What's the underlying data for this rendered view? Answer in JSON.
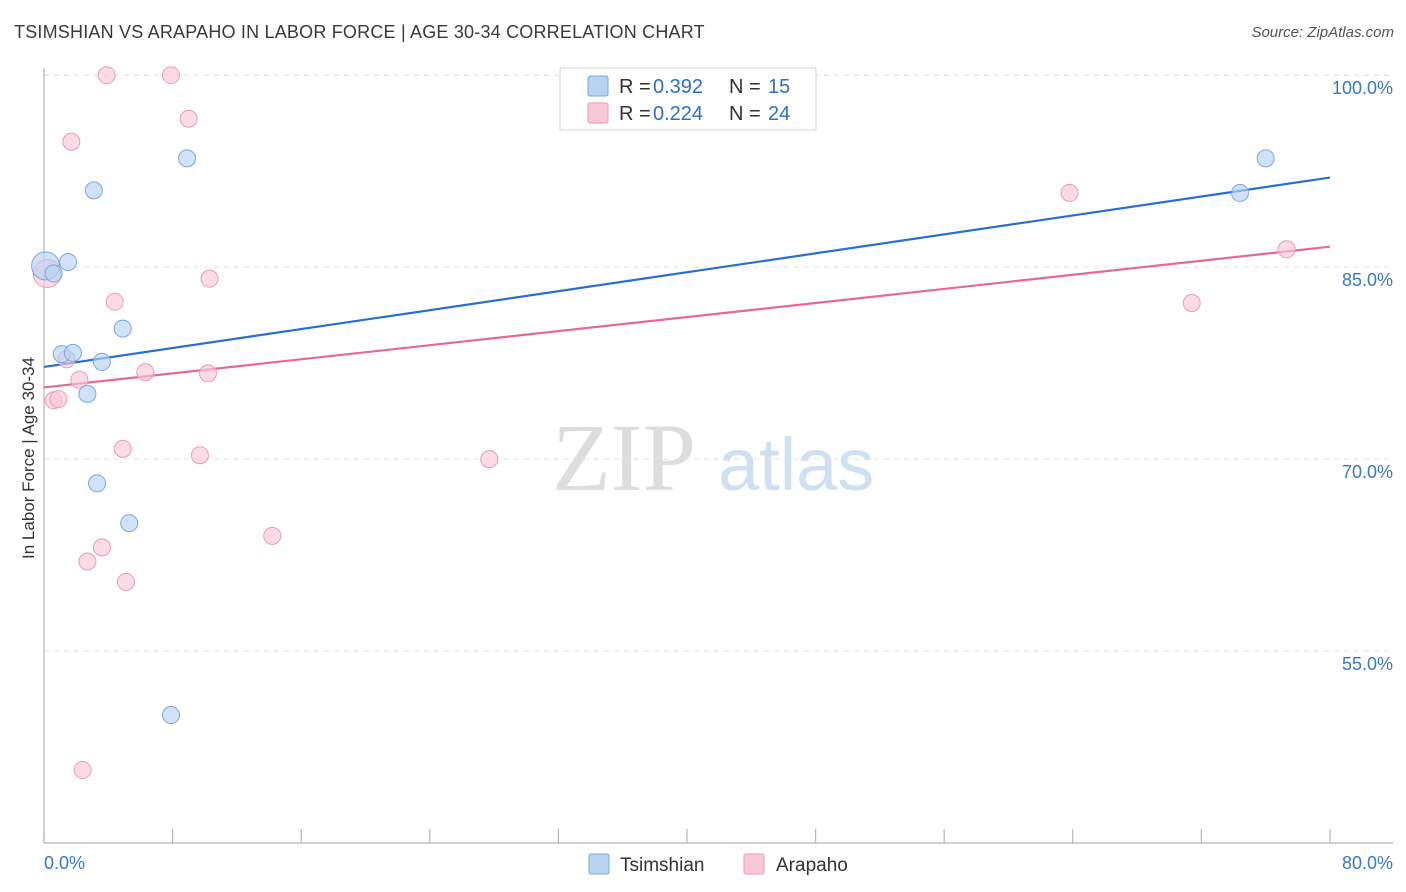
{
  "header": {
    "title": "TSIMSHIAN VS ARAPAHO IN LABOR FORCE | AGE 30-34 CORRELATION CHART",
    "source": "Source: ZipAtlas.com"
  },
  "watermark": {
    "zip": "ZIP",
    "atlas": "atlas"
  },
  "colors": {
    "tsimshian_fill": "#b8d3f2",
    "tsimshian_stroke": "#7aa8e0",
    "tsimshian_line": "#2a6fcf",
    "arapaho_fill": "#f9c8d7",
    "arapaho_stroke": "#ee9ab4",
    "arapaho_line": "#e46a93",
    "grid": "#e2e2e2",
    "axis": "#b5b5b5",
    "label": "#3b78c4"
  },
  "legend": {
    "rows": [
      {
        "series": "Tsimshian",
        "r_label": "R = ",
        "r_value": "0.392",
        "n_label": "N = ",
        "n_value": "15"
      },
      {
        "series": "Arapaho",
        "r_label": "R = ",
        "r_value": "0.224",
        "n_label": "N = ",
        "n_value": "24"
      }
    ]
  },
  "chart_data": {
    "type": "scatter",
    "title": "TSIMSHIAN VS ARAPAHO IN LABOR FORCE | AGE 30-34 CORRELATION CHART",
    "xlabel": "",
    "ylabel": "In Labor Force | Age 30-34",
    "xlim": [
      0,
      80
    ],
    "ylim": [
      40,
      101.5
    ],
    "x_tick_labels": [
      "0.0%",
      "80.0%"
    ],
    "y_ticks": [
      55,
      70,
      85,
      100
    ],
    "y_tick_labels": [
      "55.0%",
      "70.0%",
      "85.0%",
      "100.0%"
    ],
    "series": [
      {
        "name": "Tsimshian",
        "R": 0.392,
        "N": 15,
        "trend": {
          "x": [
            0,
            80
          ],
          "y": [
            77.2,
            92.0
          ]
        },
        "points": [
          {
            "x": 0.1,
            "y": 85.1
          },
          {
            "x": 0.6,
            "y": 84.5
          },
          {
            "x": 1.5,
            "y": 85.4
          },
          {
            "x": 3.1,
            "y": 91.0
          },
          {
            "x": 8.9,
            "y": 93.5
          },
          {
            "x": 4.9,
            "y": 80.2
          },
          {
            "x": 1.1,
            "y": 78.2
          },
          {
            "x": 1.8,
            "y": 78.3
          },
          {
            "x": 3.6,
            "y": 77.6
          },
          {
            "x": 2.7,
            "y": 75.1
          },
          {
            "x": 3.3,
            "y": 68.1
          },
          {
            "x": 5.3,
            "y": 65.0
          },
          {
            "x": 7.9,
            "y": 50.0
          },
          {
            "x": 74.4,
            "y": 90.8
          },
          {
            "x": 76.0,
            "y": 93.5
          }
        ]
      },
      {
        "name": "Arapaho",
        "R": 0.224,
        "N": 24,
        "trend": {
          "x": [
            0,
            80
          ],
          "y": [
            75.6,
            86.6
          ]
        },
        "points": [
          {
            "x": 0.2,
            "y": 84.5
          },
          {
            "x": 3.9,
            "y": 100.0
          },
          {
            "x": 7.9,
            "y": 100.0
          },
          {
            "x": 1.7,
            "y": 94.8
          },
          {
            "x": 9.0,
            "y": 96.6
          },
          {
            "x": 10.3,
            "y": 84.1
          },
          {
            "x": 4.4,
            "y": 82.3
          },
          {
            "x": 1.4,
            "y": 77.8
          },
          {
            "x": 2.2,
            "y": 76.2
          },
          {
            "x": 0.6,
            "y": 74.6
          },
          {
            "x": 0.9,
            "y": 74.7
          },
          {
            "x": 6.3,
            "y": 76.8
          },
          {
            "x": 10.2,
            "y": 76.7
          },
          {
            "x": 4.9,
            "y": 70.8
          },
          {
            "x": 9.7,
            "y": 70.3
          },
          {
            "x": 27.7,
            "y": 70.0
          },
          {
            "x": 14.2,
            "y": 64.0
          },
          {
            "x": 3.6,
            "y": 63.1
          },
          {
            "x": 2.7,
            "y": 62.0
          },
          {
            "x": 5.1,
            "y": 60.4
          },
          {
            "x": 2.4,
            "y": 45.7
          },
          {
            "x": 63.8,
            "y": 90.8
          },
          {
            "x": 71.4,
            "y": 82.2
          },
          {
            "x": 77.3,
            "y": 86.4
          }
        ]
      }
    ]
  },
  "bottom_legend": {
    "items": [
      {
        "label": "Tsimshian"
      },
      {
        "label": "Arapaho"
      }
    ]
  }
}
